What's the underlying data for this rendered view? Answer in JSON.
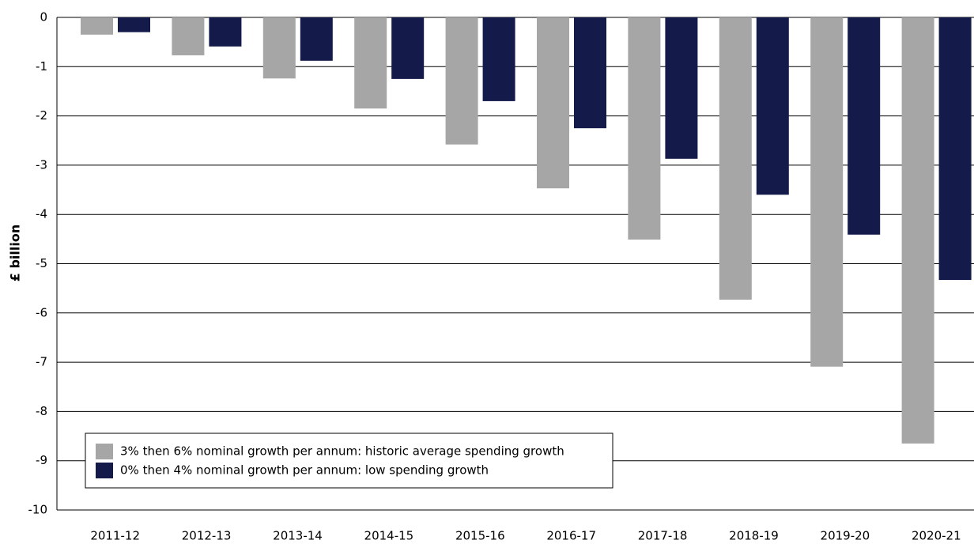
{
  "chart_data": {
    "type": "bar",
    "y_label": "£ billion",
    "categories": [
      "2011-12",
      "2012-13",
      "2013-14",
      "2014-15",
      "2015-16",
      "2016-17",
      "2017-18",
      "2018-19",
      "2019-20",
      "2020-21"
    ],
    "series": [
      {
        "name": "3% then 6% nominal growth per annum: historic average spending growth",
        "color": "#a6a6a6",
        "values": [
          -0.35,
          -0.77,
          -1.24,
          -1.85,
          -2.58,
          -3.47,
          -4.51,
          -5.73,
          -7.09,
          -8.65
        ]
      },
      {
        "name": "0% then 4% nominal growth per annum: low spending growth",
        "color": "#141a4a",
        "values": [
          -0.3,
          -0.59,
          -0.88,
          -1.25,
          -1.7,
          -2.25,
          -2.87,
          -3.6,
          -4.41,
          -5.33
        ]
      }
    ],
    "ylim": [
      -10,
      0
    ],
    "yticks": [
      0,
      -1,
      -2,
      -3,
      -4,
      -5,
      -6,
      -7,
      -8,
      -9,
      -10
    ],
    "grid": true,
    "legend": "bottom-left"
  }
}
